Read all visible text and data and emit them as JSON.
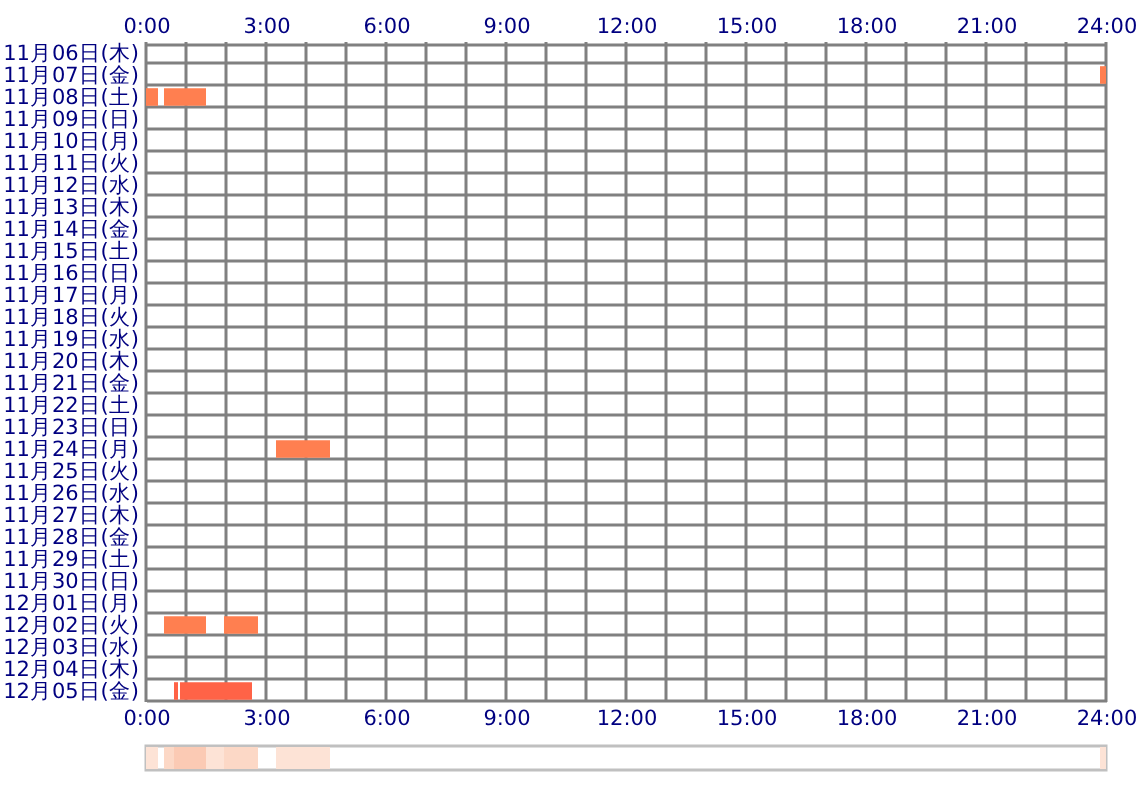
{
  "chart_data": [
    {
      "type": "bar",
      "orientation": "horizontal",
      "categories": [
        "11月06日(木)",
        "11月07日(金)",
        "11月08日(土)",
        "11月09日(日)",
        "11月10日(月)",
        "11月11日(火)",
        "11月12日(水)",
        "11月13日(木)",
        "11月14日(金)",
        "11月15日(土)",
        "11月16日(日)",
        "11月17日(月)",
        "11月18日(火)",
        "11月19日(水)",
        "11月20日(木)",
        "11月21日(金)",
        "11月22日(土)",
        "11月23日(日)",
        "11月24日(月)",
        "11月25日(火)",
        "11月26日(水)",
        "11月27日(木)",
        "11月28日(金)",
        "11月29日(土)",
        "11月30日(日)",
        "12月01日(月)",
        "12月02日(火)",
        "12月03日(水)",
        "12月04日(木)",
        "12月05日(金)"
      ],
      "series": [
        {
          "base": [
            null,
            23.85,
            0,
            null,
            null,
            null,
            null,
            null,
            null,
            null,
            null,
            null,
            null,
            null,
            null,
            null,
            null,
            null,
            3.25,
            null,
            null,
            null,
            null,
            null,
            null,
            null,
            0.45,
            null,
            null,
            0.7
          ],
          "values": [
            null,
            0.15,
            0.3,
            null,
            null,
            null,
            null,
            null,
            null,
            null,
            null,
            null,
            null,
            null,
            null,
            null,
            null,
            null,
            1.35,
            null,
            null,
            null,
            null,
            null,
            null,
            null,
            1.05,
            null,
            null,
            0.1
          ],
          "colors": [
            null,
            "#ff7f50",
            "#ff7f50",
            null,
            null,
            null,
            null,
            null,
            null,
            null,
            null,
            null,
            null,
            null,
            null,
            null,
            null,
            null,
            "#ff7f50",
            null,
            null,
            null,
            null,
            null,
            null,
            null,
            "#ff7f50",
            null,
            null,
            "#ff6347"
          ]
        },
        {
          "base": [
            null,
            null,
            0.45,
            null,
            null,
            null,
            null,
            null,
            null,
            null,
            null,
            null,
            null,
            null,
            null,
            null,
            null,
            null,
            null,
            null,
            null,
            null,
            null,
            null,
            null,
            null,
            1.95,
            null,
            null,
            0.85
          ],
          "values": [
            null,
            null,
            1.05,
            null,
            null,
            null,
            null,
            null,
            null,
            null,
            null,
            null,
            null,
            null,
            null,
            null,
            null,
            null,
            null,
            null,
            null,
            null,
            null,
            null,
            null,
            null,
            0.85,
            null,
            null,
            1.8
          ],
          "colors": [
            null,
            null,
            "#ff7f50",
            null,
            null,
            null,
            null,
            null,
            null,
            null,
            null,
            null,
            null,
            null,
            null,
            null,
            null,
            null,
            null,
            null,
            null,
            null,
            null,
            null,
            null,
            null,
            "#ff7f50",
            null,
            null,
            "#ff6347"
          ]
        }
      ],
      "xlim": [
        0,
        24
      ],
      "xticks": [
        {
          "value": 0,
          "label": "0:00"
        },
        {
          "value": 1,
          "label": null
        },
        {
          "value": 2,
          "label": null
        },
        {
          "value": 3,
          "label": "3:00"
        },
        {
          "value": 4,
          "label": null
        },
        {
          "value": 5,
          "label": null
        },
        {
          "value": 6,
          "label": "6:00"
        },
        {
          "value": 7,
          "label": null
        },
        {
          "value": 8,
          "label": null
        },
        {
          "value": 9,
          "label": "9:00"
        },
        {
          "value": 10,
          "label": null
        },
        {
          "value": 11,
          "label": null
        },
        {
          "value": 12,
          "label": "12:00"
        },
        {
          "value": 13,
          "label": null
        },
        {
          "value": 14,
          "label": null
        },
        {
          "value": 15,
          "label": "15:00"
        },
        {
          "value": 16,
          "label": null
        },
        {
          "value": 17,
          "label": null
        },
        {
          "value": 18,
          "label": "18:00"
        },
        {
          "value": 19,
          "label": null
        },
        {
          "value": 20,
          "label": null
        },
        {
          "value": 21,
          "label": "21:00"
        },
        {
          "value": 22,
          "label": null
        },
        {
          "value": 23,
          "label": null
        },
        {
          "value": 24,
          "label": "24:00"
        }
      ],
      "x2lim": [
        0,
        24
      ],
      "x2ticks": [
        {
          "value": 0,
          "label": "0:00"
        },
        {
          "value": 1,
          "label": null
        },
        {
          "value": 2,
          "label": null
        },
        {
          "value": 3,
          "label": "3:00"
        },
        {
          "value": 4,
          "label": null
        },
        {
          "value": 5,
          "label": null
        },
        {
          "value": 6,
          "label": "6:00"
        },
        {
          "value": 7,
          "label": null
        },
        {
          "value": 8,
          "label": null
        },
        {
          "value": 9,
          "label": "9:00"
        },
        {
          "value": 10,
          "label": null
        },
        {
          "value": 11,
          "label": null
        },
        {
          "value": 12,
          "label": "12:00"
        },
        {
          "value": 13,
          "label": null
        },
        {
          "value": 14,
          "label": null
        },
        {
          "value": 15,
          "label": "15:00"
        },
        {
          "value": 16,
          "label": null
        },
        {
          "value": 17,
          "label": null
        },
        {
          "value": 18,
          "label": "18:00"
        },
        {
          "value": 19,
          "label": null
        },
        {
          "value": 20,
          "label": null
        },
        {
          "value": 21,
          "label": "21:00"
        },
        {
          "value": 22,
          "label": null
        },
        {
          "value": 23,
          "label": null
        },
        {
          "value": 24,
          "label": "24:00"
        }
      ],
      "grid": true
    },
    {
      "type": "bar",
      "orientation": "horizontal",
      "categories": [
        null
      ],
      "series": [
        {
          "base": [
            0
          ],
          "values": [
            0.3
          ],
          "color": "#fde3d6"
        },
        {
          "base": [
            0.45
          ],
          "values": [
            0.25
          ],
          "color": "#fcd8c6"
        },
        {
          "base": [
            0.7
          ],
          "values": [
            0.8
          ],
          "color": "#fbcab4"
        },
        {
          "base": [
            1.5
          ],
          "values": [
            0.45
          ],
          "color": "#fde3d6"
        },
        {
          "base": [
            1.95
          ],
          "values": [
            0.85
          ],
          "color": "#fcd8c6"
        },
        {
          "base": [
            3.25
          ],
          "values": [
            1.35
          ],
          "color": "#fde3d6"
        },
        {
          "base": [
            23.85
          ],
          "values": [
            0.15
          ],
          "color": "#fde3d6"
        }
      ],
      "xlim": [
        0,
        24
      ],
      "tick_labels": false
    }
  ]
}
